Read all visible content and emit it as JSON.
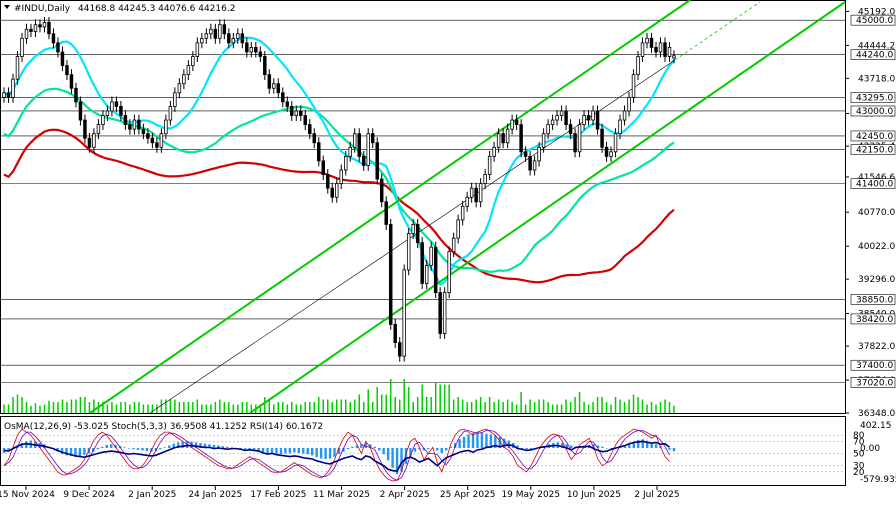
{
  "header": {
    "symbol": "#INDU,Daily",
    "ohlc": "44168.8 44245.3 44076.6 44216.2"
  },
  "indicator_header": "OsMA(12,26,9) -53.025  Stoch(5,3,3) 36.9508 41.1252  RSI(14) 60.1672",
  "chart_data": {
    "type": "candlestick",
    "x_labels": [
      "15 Nov 2024",
      "9 Dec 2024",
      "2 Jan 2025",
      "24 Jan 2025",
      "17 Feb 2025",
      "11 Mar 2025",
      "2 Apr 2025",
      "25 Apr 2025",
      "19 May 2025",
      "10 Jun 2025",
      "2 Jul 2025"
    ],
    "y_ticks": [
      "45192.0",
      "44444.2",
      "43718.0",
      "42944.2",
      "42225.4",
      "41546.6",
      "40770.0",
      "40022.0",
      "39296.0",
      "38540.0",
      "37822.0",
      "37074.0",
      "36348.0"
    ],
    "levels": [
      "45000.0",
      "44240.0",
      "43295.0",
      "43000.0",
      "42450.0",
      "42150.0",
      "41400.0",
      "38850.0",
      "38420.0",
      "37400.0",
      "37020.0"
    ],
    "current_price": "44240.0",
    "ylim": [
      36348,
      45400
    ],
    "close": [
      43400,
      43300,
      43700,
      44200,
      44600,
      44800,
      44750,
      44900,
      44850,
      44950,
      44700,
      44500,
      44300,
      44000,
      43800,
      43500,
      43200,
      42800,
      42400,
      42200,
      42500,
      42700,
      42900,
      43000,
      43200,
      43100,
      42900,
      42700,
      42600,
      42800,
      42600,
      42500,
      42400,
      42300,
      42200,
      42500,
      42800,
      43100,
      43400,
      43600,
      43800,
      44000,
      44200,
      44500,
      44600,
      44700,
      44800,
      44600,
      44900,
      44700,
      44500,
      44600,
      44700,
      44500,
      44300,
      44400,
      44300,
      44200,
      43800,
      43500,
      43600,
      43400,
      43200,
      43100,
      42900,
      43000,
      42900,
      42700,
      42500,
      42300,
      41900,
      41600,
      41300,
      41100,
      41400,
      41700,
      42000,
      42200,
      42500,
      42000,
      41800,
      42500,
      42300,
      41500,
      41000,
      40500,
      38300,
      37900,
      37600,
      39500,
      40300,
      40500,
      40100,
      39200,
      39600,
      40000,
      39000,
      38100,
      39000,
      39900,
      40200,
      40600,
      40900,
      41100,
      41300,
      41000,
      41400,
      41600,
      42000,
      42200,
      42500,
      42300,
      42600,
      42800,
      42700,
      42100,
      42000,
      41700,
      41900,
      42200,
      42500,
      42700,
      42800,
      42900,
      43000,
      42700,
      42500,
      42100,
      42700,
      42900,
      42800,
      43000,
      42600,
      42200,
      42000,
      42100,
      42500,
      42800,
      43000,
      43300,
      43800,
      44200,
      44500,
      44600,
      44400,
      44300,
      44500,
      44200,
      44400,
      44216
    ],
    "open": [
      43300,
      43400,
      43300,
      43700,
      44200,
      44600,
      44800,
      44750,
      44900,
      44850,
      44950,
      44700,
      44500,
      44300,
      44000,
      43800,
      43500,
      43200,
      42800,
      42400,
      42200,
      42500,
      42700,
      42900,
      43000,
      43200,
      43100,
      42900,
      42700,
      42600,
      42800,
      42600,
      42500,
      42400,
      42300,
      42200,
      42500,
      42800,
      43100,
      43400,
      43600,
      43800,
      44000,
      44200,
      44500,
      44600,
      44700,
      44800,
      44600,
      44900,
      44700,
      44500,
      44600,
      44700,
      44500,
      44300,
      44400,
      44300,
      44200,
      43800,
      43500,
      43600,
      43400,
      43200,
      43100,
      42900,
      43000,
      42900,
      42700,
      42500,
      42300,
      41900,
      41600,
      41300,
      41100,
      41400,
      41700,
      42000,
      42200,
      42500,
      42000,
      41800,
      42500,
      42300,
      41500,
      41000,
      40500,
      38300,
      37900,
      37600,
      39500,
      40300,
      40500,
      40100,
      39200,
      39600,
      40000,
      39000,
      38100,
      39000,
      39900,
      40200,
      40600,
      40900,
      41100,
      41300,
      41000,
      41400,
      41600,
      42000,
      42200,
      42500,
      42300,
      42600,
      42800,
      42700,
      42100,
      42000,
      41700,
      41900,
      42200,
      42500,
      42700,
      42800,
      42900,
      43000,
      42700,
      42500,
      42100,
      42700,
      42900,
      42800,
      43000,
      42600,
      42200,
      42000,
      42100,
      42500,
      42800,
      43000,
      43300,
      43800,
      44200,
      44500,
      44600,
      44400,
      44300,
      44500,
      44200,
      44168.8
    ],
    "ma_colors": {
      "fast": "#00e5ff",
      "mid": "#00e5a0",
      "slow": "#d40000",
      "channel": "#00cc00"
    }
  },
  "osma": {
    "ylim": [
      -579.935,
      402.15
    ],
    "y_ticks": [
      "402.15",
      "0.00",
      "-579.935"
    ],
    "rsi_levels": [
      "80",
      "70",
      "50",
      "30",
      "20"
    ],
    "values": [
      -80,
      -60,
      -20,
      40,
      80,
      110,
      120,
      100,
      80,
      60,
      20,
      -20,
      -60,
      -100,
      -120,
      -130,
      -140,
      -130,
      -110,
      -90,
      -60,
      -20,
      20,
      50,
      60,
      50,
      30,
      10,
      -10,
      -20,
      -30,
      -40,
      -50,
      -60,
      -50,
      -20,
      10,
      40,
      70,
      90,
      100,
      110,
      100,
      90,
      80,
      70,
      60,
      50,
      40,
      30,
      20,
      10,
      0,
      -10,
      -20,
      -30,
      -40,
      -50,
      -70,
      -90,
      -100,
      -110,
      -100,
      -90,
      -80,
      -70,
      -80,
      -90,
      -100,
      -120,
      -150,
      -170,
      -180,
      -170,
      -140,
      -100,
      -60,
      -20,
      20,
      40,
      60,
      80,
      60,
      20,
      -40,
      -100,
      -200,
      -320,
      -420,
      -380,
      -260,
      -140,
      -60,
      -20,
      -40,
      -20,
      0,
      -40,
      -80,
      -40,
      20,
      80,
      140,
      180,
      220,
      240,
      250,
      240,
      230,
      220,
      200,
      180,
      150,
      120,
      80,
      40,
      0,
      -20,
      -30,
      -20,
      0,
      30,
      60,
      80,
      90,
      80,
      60,
      40,
      20,
      30,
      40,
      50,
      60,
      40,
      20,
      0,
      -10,
      0,
      20,
      40,
      70,
      100,
      130,
      140,
      120,
      90,
      60,
      30,
      0,
      -30,
      -53.025
    ],
    "stoch": [
      30,
      40,
      60,
      80,
      90,
      85,
      80,
      70,
      60,
      50,
      40,
      30,
      20,
      15,
      15,
      20,
      25,
      30,
      40,
      55,
      70,
      80,
      85,
      80,
      70,
      60,
      50,
      40,
      30,
      25,
      25,
      30,
      40,
      55,
      70,
      80,
      85,
      85,
      80,
      75,
      70,
      65,
      60,
      55,
      50,
      45,
      40,
      35,
      30,
      28,
      25,
      25,
      30,
      35,
      40,
      45,
      40,
      35,
      30,
      25,
      20,
      18,
      20,
      25,
      30,
      35,
      30,
      25,
      20,
      15,
      12,
      10,
      15,
      25,
      40,
      60,
      75,
      85,
      80,
      65,
      50,
      70,
      60,
      40,
      25,
      15,
      8,
      5,
      6,
      20,
      50,
      70,
      75,
      60,
      40,
      50,
      60,
      35,
      20,
      40,
      65,
      80,
      88,
      90,
      85,
      80,
      85,
      88,
      90,
      85,
      80,
      70,
      60,
      55,
      45,
      30,
      25,
      20,
      30,
      45,
      60,
      70,
      78,
      82,
      80,
      70,
      55,
      40,
      50,
      65,
      70,
      75,
      60,
      40,
      30,
      35,
      50,
      65,
      75,
      80,
      85,
      90,
      88,
      85,
      80,
      75,
      80,
      60,
      45,
      36.95
    ],
    "rsi": [
      55,
      54,
      58,
      62,
      65,
      66,
      65,
      64,
      63,
      62,
      60,
      58,
      55,
      52,
      50,
      48,
      46,
      45,
      44,
      46,
      48,
      50,
      52,
      53,
      54,
      53,
      52,
      50,
      49,
      50,
      49,
      48,
      47,
      46,
      47,
      50,
      53,
      56,
      59,
      61,
      62,
      63,
      63,
      62,
      61,
      60,
      60,
      58,
      59,
      58,
      57,
      58,
      58,
      57,
      55,
      56,
      55,
      54,
      51,
      49,
      50,
      48,
      47,
      46,
      45,
      46,
      45,
      43,
      42,
      41,
      38,
      36,
      34,
      33,
      36,
      39,
      42,
      44,
      46,
      42,
      40,
      46,
      44,
      38,
      34,
      30,
      24,
      22,
      21,
      35,
      42,
      44,
      41,
      36,
      39,
      42,
      36,
      30,
      37,
      43,
      46,
      49,
      52,
      54,
      55,
      52,
      56,
      57,
      60,
      61,
      63,
      61,
      63,
      64,
      63,
      58,
      57,
      55,
      56,
      58,
      60,
      61,
      62,
      63,
      63,
      61,
      59,
      56,
      60,
      61,
      61,
      62,
      58,
      55,
      53,
      54,
      57,
      59,
      61,
      63,
      66,
      68,
      69,
      70,
      68,
      67,
      68,
      65,
      66,
      60.17
    ]
  }
}
